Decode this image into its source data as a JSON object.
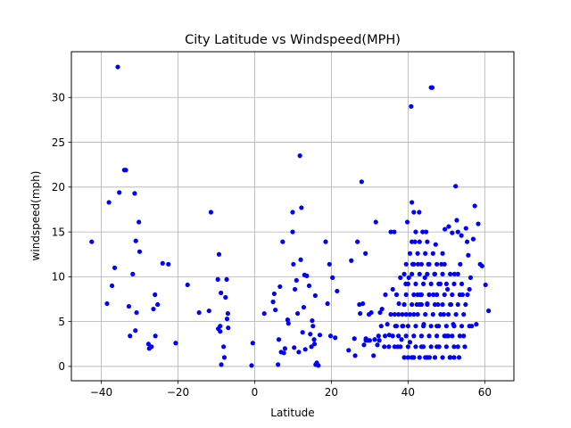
{
  "chart_data": {
    "type": "scatter",
    "title": "City Latitude vs Windspeed(MPH)",
    "xlabel": "Latitude",
    "ylabel": "windspeed(mph)",
    "xlim": [
      -47.8,
      67.6
    ],
    "ylim": [
      -1.6,
      35.1
    ],
    "xticks": [
      -40,
      -20,
      0,
      20,
      40,
      60
    ],
    "yticks": [
      0,
      5,
      10,
      15,
      20,
      25,
      30
    ],
    "grid": true,
    "marker_color": "#0000ff",
    "series": [
      {
        "points": [
          [
            -42.5,
            13.9
          ],
          [
            -38.5,
            7.0
          ],
          [
            -38.0,
            18.3
          ],
          [
            -37.2,
            9.0
          ],
          [
            -36.5,
            11.0
          ],
          [
            -35.7,
            33.4
          ],
          [
            -35.3,
            19.4
          ],
          [
            -34.0,
            21.9
          ],
          [
            -33.6,
            21.9
          ],
          [
            -32.8,
            6.7
          ],
          [
            -32.5,
            3.4
          ],
          [
            -31.8,
            10.3
          ],
          [
            -31.3,
            19.3
          ],
          [
            -31.1,
            4.0
          ],
          [
            -31.0,
            14.0
          ],
          [
            -30.8,
            6.0
          ],
          [
            -30.2,
            16.1
          ],
          [
            -30.0,
            12.8
          ],
          [
            -27.7,
            2.5
          ],
          [
            -27.5,
            2.0
          ],
          [
            -26.9,
            2.2
          ],
          [
            -26.4,
            6.4
          ],
          [
            -26.0,
            8.0
          ],
          [
            -25.9,
            3.4
          ],
          [
            -25.3,
            6.9
          ],
          [
            -24.0,
            11.5
          ],
          [
            -22.5,
            11.4
          ],
          [
            -20.6,
            2.6
          ],
          [
            -17.5,
            9.1
          ],
          [
            -14.5,
            6.0
          ],
          [
            -11.9,
            6.2
          ],
          [
            -11.4,
            17.2
          ],
          [
            -9.6,
            9.7
          ],
          [
            -9.5,
            4.2
          ],
          [
            -9.0,
            3.9
          ],
          [
            -9.3,
            12.5
          ],
          [
            -9.0,
            4.5
          ],
          [
            -8.8,
            8.2
          ],
          [
            -8.7,
            0.2
          ],
          [
            -8.1,
            2.2
          ],
          [
            -7.9,
            1.0
          ],
          [
            -7.6,
            7.7
          ],
          [
            -7.3,
            9.7
          ],
          [
            -7.2,
            5.3
          ],
          [
            -7.0,
            5.9
          ],
          [
            -6.9,
            4.3
          ],
          [
            -0.8,
            0.1
          ],
          [
            -0.5,
            2.6
          ],
          [
            2.5,
            5.9
          ],
          [
            4.8,
            7.2
          ],
          [
            5.1,
            8.1
          ],
          [
            5.4,
            6.3
          ],
          [
            6.1,
            0.2
          ],
          [
            6.3,
            3.0
          ],
          [
            6.6,
            8.9
          ],
          [
            6.9,
            1.6
          ],
          [
            7.3,
            13.9
          ],
          [
            7.6,
            1.5
          ],
          [
            7.9,
            2.0
          ],
          [
            8.6,
            5.2
          ],
          [
            8.8,
            4.8
          ],
          [
            9.9,
            17.2
          ],
          [
            9.9,
            15.0
          ],
          [
            10.1,
            11.4
          ],
          [
            10.3,
            2.1
          ],
          [
            10.5,
            8.6
          ],
          [
            10.9,
            9.6
          ],
          [
            11.2,
            5.9
          ],
          [
            11.5,
            1.6
          ],
          [
            11.8,
            23.5
          ],
          [
            12.2,
            17.7
          ],
          [
            12.0,
            11.9
          ],
          [
            12.5,
            3.8
          ],
          [
            12.8,
            6.6
          ],
          [
            13.0,
            10.2
          ],
          [
            13.2,
            1.9
          ],
          [
            13.6,
            10.1
          ],
          [
            14.2,
            9.0
          ],
          [
            14.5,
            3.6
          ],
          [
            14.8,
            2.2
          ],
          [
            15.0,
            5.1
          ],
          [
            15.2,
            4.5
          ],
          [
            15.5,
            3.0
          ],
          [
            15.6,
            2.5
          ],
          [
            15.8,
            7.9
          ],
          [
            15.9,
            0.2
          ],
          [
            16.2,
            0.4
          ],
          [
            16.6,
            0.1
          ],
          [
            17.0,
            3.5
          ],
          [
            18.5,
            13.9
          ],
          [
            19.0,
            7.0
          ],
          [
            19.5,
            11.4
          ],
          [
            19.8,
            3.4
          ],
          [
            20.3,
            9.9
          ],
          [
            21.0,
            3.2
          ],
          [
            21.5,
            8.4
          ],
          [
            24.5,
            1.8
          ],
          [
            25.2,
            11.8
          ],
          [
            26.0,
            3.1
          ],
          [
            26.2,
            1.2
          ],
          [
            26.8,
            13.9
          ],
          [
            27.3,
            6.9
          ],
          [
            27.5,
            5.9
          ],
          [
            27.9,
            20.6
          ],
          [
            28.2,
            7.0
          ],
          [
            28.5,
            2.4
          ],
          [
            28.9,
            12.6
          ],
          [
            29.0,
            3.1
          ],
          [
            29.5,
            2.9
          ],
          [
            29.8,
            5.8
          ],
          [
            30.4,
            6.0
          ],
          [
            31.0,
            1.2
          ],
          [
            31.3,
            3.0
          ],
          [
            31.6,
            16.1
          ],
          [
            32.0,
            2.4
          ],
          [
            32.3,
            3.4
          ],
          [
            32.7,
            6.0
          ],
          [
            33.2,
            6.4
          ],
          [
            33.8,
            2.2
          ],
          [
            34.1,
            8.0
          ],
          [
            34.6,
            4.7
          ],
          [
            35.1,
            3.5
          ],
          [
            35.5,
            15.0
          ],
          [
            36.0,
            8.6
          ],
          [
            36.4,
            15.0
          ],
          [
            36.7,
            4.5
          ],
          [
            37.0,
            8.0
          ],
          [
            37.3,
            2.2
          ],
          [
            37.6,
            7.0
          ],
          [
            38.0,
            9.9
          ],
          [
            38.3,
            3.0
          ],
          [
            38.7,
            4.5
          ],
          [
            39.0,
            6.9
          ],
          [
            39.4,
            9.2
          ],
          [
            39.8,
            16.1
          ],
          [
            40.0,
            1.0
          ],
          [
            40.2,
            9.9
          ],
          [
            40.5,
            2.7
          ],
          [
            40.8,
            29.0
          ],
          [
            41.0,
            18.3
          ],
          [
            41.2,
            11.4
          ],
          [
            41.5,
            17.2
          ],
          [
            41.8,
            13.9
          ],
          [
            42.0,
            15.0
          ],
          [
            42.3,
            6.9
          ],
          [
            42.6,
            11.4
          ],
          [
            42.9,
            17.2
          ],
          [
            43.2,
            8.0
          ],
          [
            43.5,
            2.2
          ],
          [
            43.8,
            15.0
          ],
          [
            44.1,
            4.7
          ],
          [
            44.4,
            9.9
          ],
          [
            44.7,
            15.0
          ],
          [
            45.0,
            7.0
          ],
          [
            45.3,
            11.4
          ],
          [
            45.6,
            1.0
          ],
          [
            46.0,
            31.1
          ],
          [
            46.3,
            31.1
          ],
          [
            46.6,
            8.0
          ],
          [
            46.9,
            10.3
          ],
          [
            47.2,
            13.6
          ],
          [
            47.5,
            4.5
          ],
          [
            47.8,
            6.9
          ],
          [
            48.1,
            2.2
          ],
          [
            48.4,
            9.2
          ],
          [
            48.7,
            11.4
          ],
          [
            49.0,
            12.6
          ],
          [
            49.3,
            5.8
          ],
          [
            49.6,
            15.3
          ],
          [
            50.0,
            3.4
          ],
          [
            50.3,
            8.6
          ],
          [
            50.6,
            15.6
          ],
          [
            50.9,
            1.0
          ],
          [
            51.2,
            6.9
          ],
          [
            51.5,
            14.9
          ],
          [
            51.8,
            4.7
          ],
          [
            52.1,
            10.3
          ],
          [
            52.4,
            20.1
          ],
          [
            52.7,
            16.3
          ],
          [
            53.0,
            15.0
          ],
          [
            53.3,
            1.0
          ],
          [
            53.6,
            11.4
          ],
          [
            53.9,
            14.6
          ],
          [
            54.2,
            8.0
          ],
          [
            54.5,
            3.4
          ],
          [
            54.8,
            2.2
          ],
          [
            55.1,
            15.4
          ],
          [
            55.4,
            13.9
          ],
          [
            55.7,
            12.4
          ],
          [
            56.0,
            8.6
          ],
          [
            56.3,
            9.9
          ],
          [
            56.6,
            4.5
          ],
          [
            57.0,
            14.2
          ],
          [
            57.4,
            17.9
          ],
          [
            57.8,
            4.7
          ],
          [
            58.3,
            15.9
          ],
          [
            58.8,
            11.4
          ],
          [
            59.3,
            11.2
          ],
          [
            60.2,
            9.1
          ],
          [
            61.0,
            6.2
          ]
        ]
      },
      {
        "points": [
          [
            35.5,
            5.8
          ],
          [
            36.5,
            5.8
          ],
          [
            37.5,
            5.8
          ],
          [
            38.5,
            5.8
          ],
          [
            39.5,
            5.8
          ],
          [
            40.5,
            5.8
          ],
          [
            41.5,
            5.8
          ],
          [
            42.5,
            5.8
          ],
          [
            39.0,
            1.0
          ],
          [
            41.0,
            1.0
          ],
          [
            43.0,
            1.0
          ],
          [
            45.0,
            1.0
          ],
          [
            47.0,
            1.0
          ],
          [
            49.0,
            1.0
          ],
          [
            51.0,
            1.0
          ],
          [
            52.0,
            1.0
          ],
          [
            40.0,
            2.2
          ],
          [
            42.0,
            2.2
          ],
          [
            44.0,
            2.2
          ],
          [
            46.0,
            2.2
          ],
          [
            48.0,
            2.2
          ],
          [
            50.0,
            2.2
          ],
          [
            52.0,
            2.2
          ],
          [
            53.0,
            2.2
          ],
          [
            39.5,
            3.4
          ],
          [
            41.5,
            3.4
          ],
          [
            43.5,
            3.4
          ],
          [
            45.5,
            3.4
          ],
          [
            47.5,
            3.4
          ],
          [
            49.5,
            3.4
          ],
          [
            51.5,
            3.4
          ],
          [
            53.5,
            3.4
          ],
          [
            40.0,
            4.5
          ],
          [
            42.0,
            4.5
          ],
          [
            44.0,
            4.5
          ],
          [
            46.0,
            4.5
          ],
          [
            48.0,
            4.5
          ],
          [
            50.0,
            4.5
          ],
          [
            52.0,
            4.5
          ],
          [
            54.0,
            4.5
          ],
          [
            56.0,
            4.5
          ],
          [
            39.0,
            6.9
          ],
          [
            41.0,
            6.9
          ],
          [
            43.0,
            6.9
          ],
          [
            45.0,
            6.9
          ],
          [
            47.0,
            6.9
          ],
          [
            49.0,
            6.9
          ],
          [
            51.0,
            6.9
          ],
          [
            53.0,
            6.9
          ],
          [
            55.0,
            6.9
          ],
          [
            39.5,
            8.0
          ],
          [
            41.5,
            8.0
          ],
          [
            43.5,
            8.0
          ],
          [
            45.5,
            8.0
          ],
          [
            47.5,
            8.0
          ],
          [
            49.5,
            8.0
          ],
          [
            51.5,
            8.0
          ],
          [
            53.5,
            8.0
          ],
          [
            55.5,
            8.0
          ],
          [
            40.0,
            9.2
          ],
          [
            42.0,
            9.2
          ],
          [
            44.0,
            9.2
          ],
          [
            46.0,
            9.2
          ],
          [
            48.0,
            9.2
          ],
          [
            50.0,
            9.2
          ],
          [
            52.0,
            9.2
          ],
          [
            54.0,
            9.2
          ],
          [
            39.0,
            10.3
          ],
          [
            41.0,
            10.3
          ],
          [
            43.0,
            10.3
          ],
          [
            45.0,
            10.3
          ],
          [
            47.0,
            10.3
          ],
          [
            49.0,
            10.3
          ],
          [
            51.0,
            10.3
          ],
          [
            53.0,
            10.3
          ],
          [
            39.5,
            11.4
          ],
          [
            41.5,
            11.4
          ],
          [
            43.5,
            11.4
          ],
          [
            45.5,
            11.4
          ],
          [
            47.5,
            11.4
          ],
          [
            49.5,
            11.4
          ],
          [
            40.5,
            12.6
          ],
          [
            42.5,
            12.6
          ],
          [
            44.5,
            12.6
          ],
          [
            46.5,
            12.6
          ],
          [
            41.0,
            13.9
          ],
          [
            43.0,
            13.9
          ],
          [
            45.0,
            13.9
          ],
          [
            38.5,
            4.5
          ],
          [
            37.5,
            3.4
          ],
          [
            36.5,
            2.2
          ],
          [
            38.0,
            2.2
          ],
          [
            37.0,
            4.5
          ],
          [
            36.0,
            3.4
          ],
          [
            35.0,
            2.2
          ],
          [
            34.0,
            3.4
          ],
          [
            33.0,
            4.5
          ],
          [
            32.5,
            2.9
          ],
          [
            30.0,
            2.9
          ],
          [
            29.0,
            2.9
          ],
          [
            41.5,
            1.0
          ],
          [
            44.5,
            1.0
          ],
          [
            47.5,
            2.2
          ],
          [
            50.5,
            3.4
          ],
          [
            46.5,
            5.8
          ],
          [
            48.5,
            5.8
          ],
          [
            50.5,
            5.8
          ],
          [
            52.5,
            5.8
          ],
          [
            54.5,
            5.8
          ],
          [
            44.5,
            5.8
          ],
          [
            43.5,
            6.9
          ],
          [
            42.5,
            8.0
          ]
        ]
      }
    ]
  }
}
